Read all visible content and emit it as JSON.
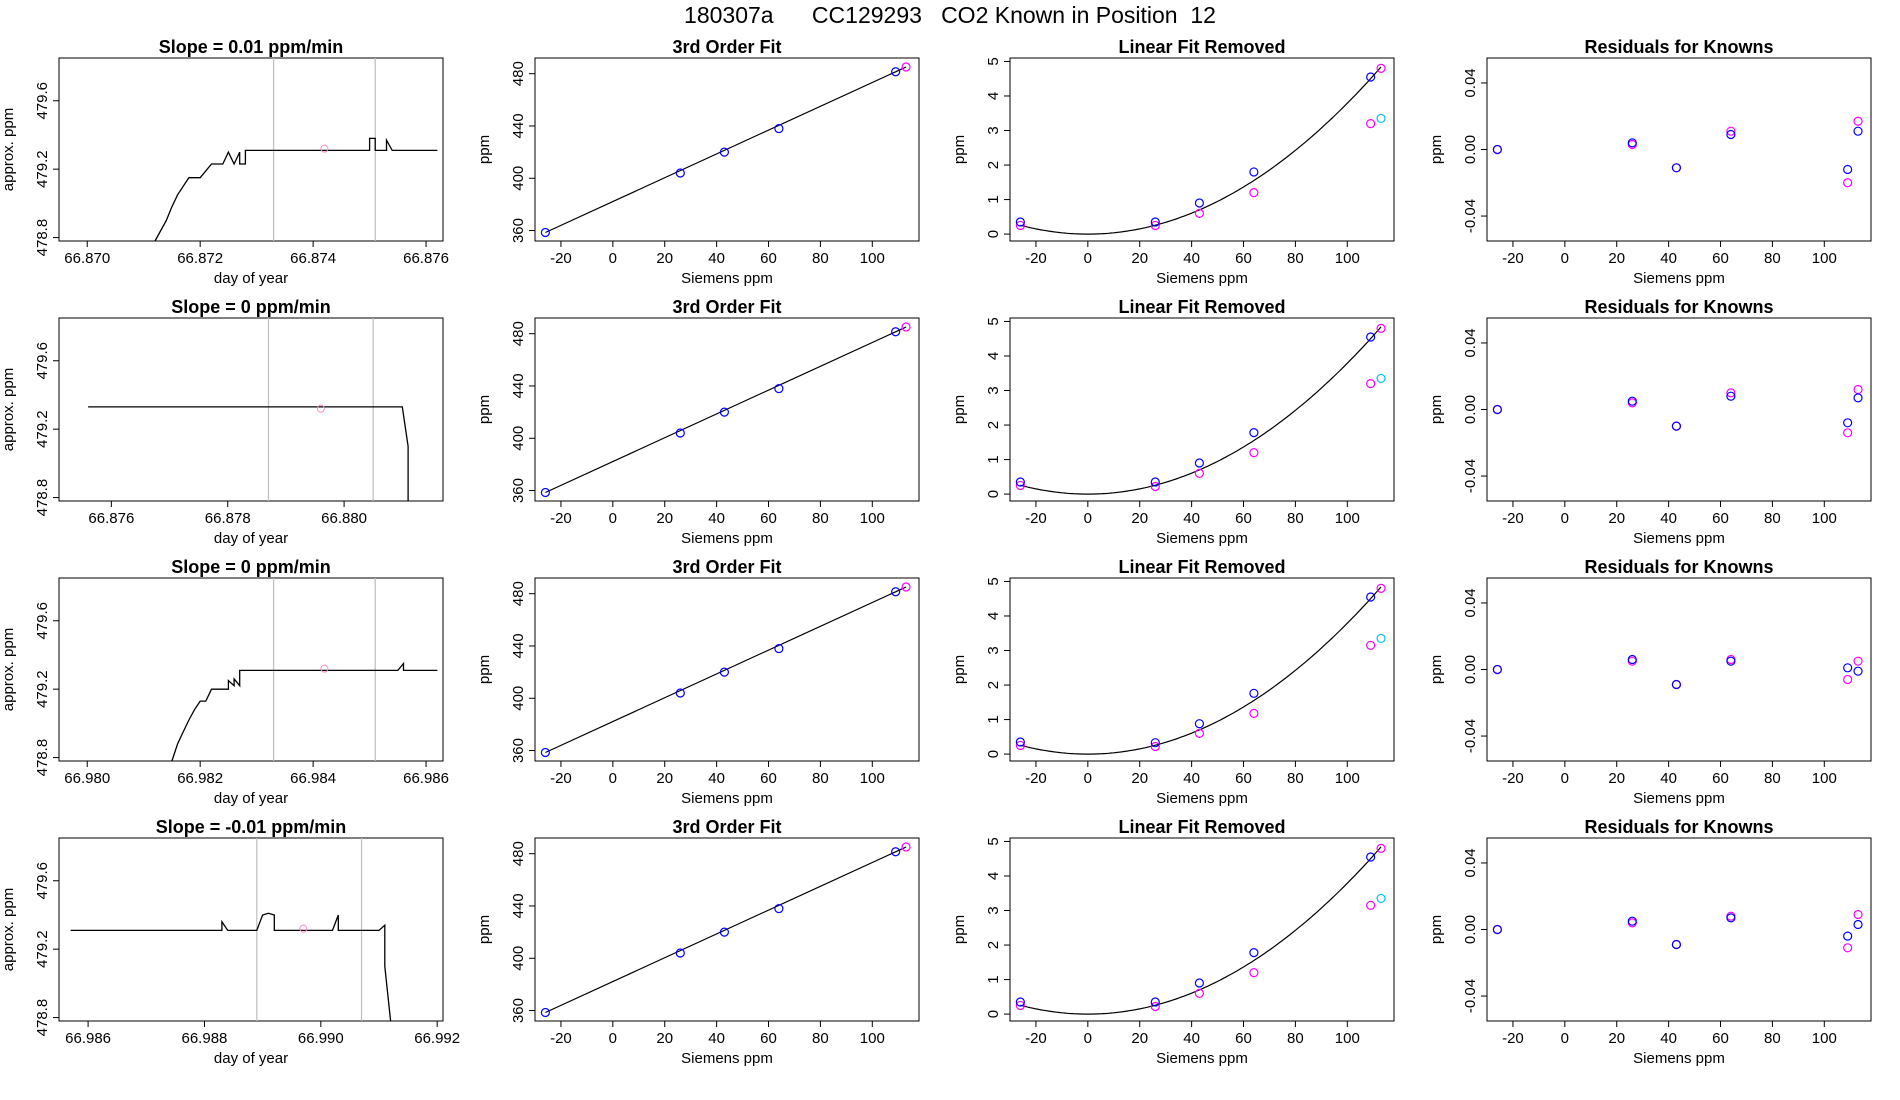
{
  "page_title": "180307a      CC129293   CO2 Known in Position  12",
  "colors": {
    "frame": "#000000",
    "line": "#000000",
    "vline": "#bebebe",
    "blue": "#0000ff",
    "magenta": "#ff00ff",
    "cyan": "#00bfff",
    "pink": "#ff88cc"
  },
  "chart_data": [
    {
      "type": "line",
      "title": "Slope =  0.01  ppm/min",
      "xlabel": "day of year",
      "ylabel": "approx. ppm",
      "xlim": [
        66.8695,
        66.8763
      ],
      "ylim": [
        478.78,
        479.85
      ],
      "xticks": [
        66.87,
        66.872,
        66.874,
        66.876
      ],
      "xtick_labels": [
        "66.870",
        "66.872",
        "66.874",
        "66.876"
      ],
      "yticks": [
        478.8,
        479.2,
        479.6
      ],
      "ytick_labels": [
        "478.8",
        "479.2",
        "479.6"
      ],
      "vlines": [
        66.8733,
        66.8751
      ],
      "marker": {
        "x": 66.8742,
        "y": 479.32
      },
      "x": [
        66.8712,
        66.8714,
        66.8715,
        66.8716,
        66.8717,
        66.8718,
        66.8719,
        66.872,
        66.8722,
        66.8723,
        66.8724,
        66.8724,
        66.8725,
        66.8726,
        66.8726,
        66.8727,
        66.8727,
        66.8728,
        66.8728,
        66.8729,
        66.875,
        66.875,
        66.8751,
        66.8751,
        66.8753,
        66.8753,
        66.8754,
        66.8762
      ],
      "y": [
        478.78,
        478.9,
        478.98,
        479.05,
        479.1,
        479.15,
        479.15,
        479.15,
        479.23,
        479.23,
        479.23,
        479.23,
        479.3,
        479.23,
        479.23,
        479.3,
        479.23,
        479.23,
        479.31,
        479.31,
        479.31,
        479.38,
        479.38,
        479.31,
        479.31,
        479.37,
        479.31,
        479.31
      ]
    },
    {
      "type": "line",
      "title": "3rd Order Fit",
      "xlabel": "Siemens ppm",
      "ylabel": "ppm",
      "xlim": [
        -30,
        118
      ],
      "ylim": [
        352,
        492
      ],
      "xticks": [
        -20,
        0,
        20,
        40,
        60,
        80,
        100
      ],
      "xtick_labels": [
        "-20",
        "0",
        "20",
        "40",
        "60",
        "80",
        "100"
      ],
      "yticks": [
        360,
        400,
        440,
        480
      ],
      "ytick_labels": [
        "360",
        "400",
        "440",
        "480"
      ],
      "fit": {
        "x": [
          -26,
          113
        ],
        "y": [
          358.5,
          485.1
        ]
      },
      "points_blue": {
        "x": [
          -26,
          26,
          43,
          64,
          109
        ],
        "y": [
          358.5,
          404,
          420,
          438,
          481.5
        ]
      },
      "points_magenta": {
        "x": [
          113
        ],
        "y": [
          485.1
        ]
      }
    },
    {
      "type": "scatter",
      "title": "Linear Fit Removed",
      "xlabel": "Siemens ppm",
      "ylabel": "ppm",
      "xlim": [
        -30,
        118
      ],
      "ylim": [
        -0.2,
        5.1
      ],
      "xticks": [
        -20,
        0,
        20,
        40,
        60,
        80,
        100
      ],
      "xtick_labels": [
        "-20",
        "0",
        "20",
        "40",
        "60",
        "80",
        "100"
      ],
      "yticks": [
        0,
        1,
        2,
        3,
        4,
        5
      ],
      "ytick_labels": [
        "0",
        "1",
        "2",
        "3",
        "4",
        "5"
      ],
      "curve_coefficient": 0.000379,
      "points_blue": {
        "x": [
          -26,
          26,
          43,
          64,
          109
        ],
        "y": [
          0.35,
          0.35,
          0.9,
          1.8,
          4.55
        ]
      },
      "points_magenta": {
        "x": [
          -26,
          26,
          43,
          64,
          109,
          113
        ],
        "y": [
          0.25,
          0.25,
          0.6,
          1.2,
          3.2,
          4.8
        ]
      },
      "points_cyan": {
        "x": [
          113
        ],
        "y": [
          3.35
        ]
      }
    },
    {
      "type": "scatter",
      "title": "Residuals for Knowns",
      "xlabel": "Siemens ppm",
      "ylabel": "ppm",
      "xlim": [
        -30,
        118
      ],
      "ylim": [
        -0.055,
        0.055
      ],
      "xticks": [
        -20,
        0,
        20,
        40,
        60,
        80,
        100
      ],
      "xtick_labels": [
        "-20",
        "0",
        "20",
        "40",
        "60",
        "80",
        "100"
      ],
      "yticks": [
        -0.04,
        0.0,
        0.04
      ],
      "ytick_labels": [
        "-0.04",
        "0.00",
        "0.04"
      ],
      "points_blue": {
        "x": [
          -26,
          26,
          43,
          64,
          109,
          113
        ],
        "y": [
          0.0,
          0.004,
          -0.011,
          0.009,
          -0.012,
          0.011
        ]
      },
      "points_magenta": {
        "x": [
          -26,
          26,
          43,
          64,
          109,
          113
        ],
        "y": [
          0.0,
          0.003,
          -0.011,
          0.011,
          -0.02,
          0.017
        ]
      }
    },
    {
      "type": "line",
      "title": "Slope =  0  ppm/min",
      "xlabel": "day of year",
      "ylabel": "approx. ppm",
      "xlim": [
        66.8751,
        66.8817
      ],
      "ylim": [
        478.78,
        479.85
      ],
      "xticks": [
        66.876,
        66.878,
        66.88
      ],
      "xtick_labels": [
        "66.876",
        "66.878",
        "66.880"
      ],
      "yticks": [
        478.8,
        479.2,
        479.6
      ],
      "ytick_labels": [
        "478.8",
        "479.2",
        "479.6"
      ],
      "vlines": [
        66.8787,
        66.8805
      ],
      "marker": {
        "x": 66.8796,
        "y": 479.32
      },
      "x": [
        66.8756,
        66.881,
        66.8811,
        66.8811
      ],
      "y": [
        479.33,
        479.33,
        479.1,
        478.78
      ]
    },
    {
      "type": "line",
      "title": "3rd Order Fit",
      "xlabel": "Siemens ppm",
      "ylabel": "ppm",
      "xlim": [
        -30,
        118
      ],
      "ylim": [
        352,
        492
      ],
      "xticks": [
        -20,
        0,
        20,
        40,
        60,
        80,
        100
      ],
      "xtick_labels": [
        "-20",
        "0",
        "20",
        "40",
        "60",
        "80",
        "100"
      ],
      "yticks": [
        360,
        400,
        440,
        480
      ],
      "ytick_labels": [
        "360",
        "400",
        "440",
        "480"
      ],
      "fit": {
        "x": [
          -26,
          113
        ],
        "y": [
          358.5,
          485.1
        ]
      },
      "points_blue": {
        "x": [
          -26,
          26,
          43,
          64,
          109
        ],
        "y": [
          358.5,
          404,
          420,
          438,
          481.5
        ]
      },
      "points_magenta": {
        "x": [
          113
        ],
        "y": [
          485.1
        ]
      }
    },
    {
      "type": "scatter",
      "title": "Linear Fit Removed",
      "xlabel": "Siemens ppm",
      "ylabel": "ppm",
      "xlim": [
        -30,
        118
      ],
      "ylim": [
        -0.2,
        5.1
      ],
      "xticks": [
        -20,
        0,
        20,
        40,
        60,
        80,
        100
      ],
      "xtick_labels": [
        "-20",
        "0",
        "20",
        "40",
        "60",
        "80",
        "100"
      ],
      "yticks": [
        0,
        1,
        2,
        3,
        4,
        5
      ],
      "ytick_labels": [
        "0",
        "1",
        "2",
        "3",
        "4",
        "5"
      ],
      "curve_coefficient": 0.000379,
      "points_blue": {
        "x": [
          -26,
          26,
          43,
          64,
          109
        ],
        "y": [
          0.35,
          0.35,
          0.9,
          1.78,
          4.55
        ]
      },
      "points_magenta": {
        "x": [
          -26,
          26,
          43,
          64,
          109,
          113
        ],
        "y": [
          0.25,
          0.22,
          0.6,
          1.2,
          3.2,
          4.8
        ]
      },
      "points_cyan": {
        "x": [
          113
        ],
        "y": [
          3.35
        ]
      }
    },
    {
      "type": "scatter",
      "title": "Residuals for Knowns",
      "xlabel": "Siemens ppm",
      "ylabel": "ppm",
      "xlim": [
        -30,
        118
      ],
      "ylim": [
        -0.055,
        0.055
      ],
      "xticks": [
        -20,
        0,
        20,
        40,
        60,
        80,
        100
      ],
      "xtick_labels": [
        "-20",
        "0",
        "20",
        "40",
        "60",
        "80",
        "100"
      ],
      "yticks": [
        -0.04,
        0.0,
        0.04
      ],
      "ytick_labels": [
        "-0.04",
        "0.00",
        "0.04"
      ],
      "points_blue": {
        "x": [
          -26,
          26,
          43,
          64,
          109,
          113
        ],
        "y": [
          0.0,
          0.005,
          -0.01,
          0.008,
          -0.008,
          0.007
        ]
      },
      "points_magenta": {
        "x": [
          -26,
          26,
          43,
          64,
          109,
          113
        ],
        "y": [
          0.0,
          0.004,
          -0.01,
          0.01,
          -0.014,
          0.012
        ]
      }
    },
    {
      "type": "line",
      "title": "Slope =  0  ppm/min",
      "xlabel": "day of year",
      "ylabel": "approx. ppm",
      "xlim": [
        66.9795,
        66.9863
      ],
      "ylim": [
        478.78,
        479.85
      ],
      "xticks": [
        66.98,
        66.982,
        66.984,
        66.986
      ],
      "xtick_labels": [
        "66.980",
        "66.982",
        "66.984",
        "66.986"
      ],
      "yticks": [
        478.8,
        479.2,
        479.6
      ],
      "ytick_labels": [
        "478.8",
        "479.2",
        "479.6"
      ],
      "vlines": [
        66.9833,
        66.9851
      ],
      "marker": {
        "x": 66.9842,
        "y": 479.32
      },
      "x": [
        66.9815,
        66.9816,
        66.9817,
        66.9818,
        66.9819,
        66.982,
        66.9821,
        66.9822,
        66.9824,
        66.9825,
        66.9825,
        66.9826,
        66.9826,
        66.9827,
        66.9827,
        66.9855,
        66.9856,
        66.9856,
        66.9862
      ],
      "y": [
        478.78,
        478.88,
        478.95,
        479.02,
        479.08,
        479.13,
        479.13,
        479.2,
        479.2,
        479.2,
        479.25,
        479.22,
        479.26,
        479.22,
        479.31,
        479.31,
        479.35,
        479.31,
        479.31
      ]
    },
    {
      "type": "line",
      "title": "3rd Order Fit",
      "xlabel": "Siemens ppm",
      "ylabel": "ppm",
      "xlim": [
        -30,
        118
      ],
      "ylim": [
        352,
        492
      ],
      "xticks": [
        -20,
        0,
        20,
        40,
        60,
        80,
        100
      ],
      "xtick_labels": [
        "-20",
        "0",
        "20",
        "40",
        "60",
        "80",
        "100"
      ],
      "yticks": [
        360,
        400,
        440,
        480
      ],
      "ytick_labels": [
        "360",
        "400",
        "440",
        "480"
      ],
      "fit": {
        "x": [
          -26,
          113
        ],
        "y": [
          358.5,
          485.1
        ]
      },
      "points_blue": {
        "x": [
          -26,
          26,
          43,
          64,
          109
        ],
        "y": [
          358.5,
          404,
          420,
          438,
          481.5
        ]
      },
      "points_magenta": {
        "x": [
          113
        ],
        "y": [
          485.1
        ]
      }
    },
    {
      "type": "scatter",
      "title": "Linear Fit Removed",
      "xlabel": "Siemens ppm",
      "ylabel": "ppm",
      "xlim": [
        -30,
        118
      ],
      "ylim": [
        -0.2,
        5.1
      ],
      "xticks": [
        -20,
        0,
        20,
        40,
        60,
        80,
        100
      ],
      "xtick_labels": [
        "-20",
        "0",
        "20",
        "40",
        "60",
        "80",
        "100"
      ],
      "yticks": [
        0,
        1,
        2,
        3,
        4,
        5
      ],
      "ytick_labels": [
        "0",
        "1",
        "2",
        "3",
        "4",
        "5"
      ],
      "curve_coefficient": 0.000379,
      "points_blue": {
        "x": [
          -26,
          26,
          43,
          64,
          109
        ],
        "y": [
          0.35,
          0.33,
          0.88,
          1.76,
          4.55
        ]
      },
      "points_magenta": {
        "x": [
          -26,
          26,
          43,
          64,
          109,
          113
        ],
        "y": [
          0.25,
          0.22,
          0.6,
          1.18,
          3.15,
          4.8
        ]
      },
      "points_cyan": {
        "x": [
          113
        ],
        "y": [
          3.35
        ]
      }
    },
    {
      "type": "scatter",
      "title": "Residuals for Knowns",
      "xlabel": "Siemens ppm",
      "ylabel": "ppm",
      "xlim": [
        -30,
        118
      ],
      "ylim": [
        -0.055,
        0.055
      ],
      "xticks": [
        -20,
        0,
        20,
        40,
        60,
        80,
        100
      ],
      "xtick_labels": [
        "-20",
        "0",
        "20",
        "40",
        "60",
        "80",
        "100"
      ],
      "yticks": [
        -0.04,
        0.0,
        0.04
      ],
      "ytick_labels": [
        "-0.04",
        "0.00",
        "0.04"
      ],
      "points_blue": {
        "x": [
          -26,
          26,
          43,
          64,
          109,
          113
        ],
        "y": [
          0.0,
          0.006,
          -0.009,
          0.005,
          0.001,
          -0.001
        ]
      },
      "points_magenta": {
        "x": [
          -26,
          26,
          43,
          64,
          109,
          113
        ],
        "y": [
          0.0,
          0.005,
          -0.009,
          0.006,
          -0.006,
          0.005
        ]
      }
    },
    {
      "type": "line",
      "title": "Slope =  -0.01  ppm/min",
      "xlabel": "day of year",
      "ylabel": "approx. ppm",
      "xlim": [
        66.9855,
        66.9921
      ],
      "ylim": [
        478.78,
        479.85
      ],
      "xticks": [
        66.986,
        66.988,
        66.99,
        66.992
      ],
      "xtick_labels": [
        "66.986",
        "66.988",
        "66.990",
        "66.992"
      ],
      "yticks": [
        478.8,
        479.2,
        479.6
      ],
      "ytick_labels": [
        "478.8",
        "479.2",
        "479.6"
      ],
      "vlines": [
        66.9889,
        66.9907
      ],
      "marker": {
        "x": 66.9897,
        "y": 479.32
      },
      "x": [
        66.9857,
        66.9883,
        66.9883,
        66.9884,
        66.9889,
        66.989,
        66.9891,
        66.9892,
        66.9892,
        66.9902,
        66.9903,
        66.9903,
        66.991,
        66.9911,
        66.9911,
        66.9912
      ],
      "y": [
        479.31,
        479.31,
        479.36,
        479.31,
        479.31,
        479.4,
        479.41,
        479.4,
        479.31,
        479.31,
        479.4,
        479.31,
        479.31,
        479.34,
        479.1,
        478.78
      ]
    },
    {
      "type": "line",
      "title": "3rd Order Fit",
      "xlabel": "Siemens ppm",
      "ylabel": "ppm",
      "xlim": [
        -30,
        118
      ],
      "ylim": [
        352,
        492
      ],
      "xticks": [
        -20,
        0,
        20,
        40,
        60,
        80,
        100
      ],
      "xtick_labels": [
        "-20",
        "0",
        "20",
        "40",
        "60",
        "80",
        "100"
      ],
      "yticks": [
        360,
        400,
        440,
        480
      ],
      "ytick_labels": [
        "360",
        "400",
        "440",
        "480"
      ],
      "fit": {
        "x": [
          -26,
          113
        ],
        "y": [
          358.5,
          485.1
        ]
      },
      "points_blue": {
        "x": [
          -26,
          26,
          43,
          64,
          109
        ],
        "y": [
          358.5,
          404,
          420,
          438,
          481.5
        ]
      },
      "points_magenta": {
        "x": [
          113
        ],
        "y": [
          485.1
        ]
      }
    },
    {
      "type": "scatter",
      "title": "Linear Fit Removed",
      "xlabel": "Siemens ppm",
      "ylabel": "ppm",
      "xlim": [
        -30,
        118
      ],
      "ylim": [
        -0.2,
        5.1
      ],
      "xticks": [
        -20,
        0,
        20,
        40,
        60,
        80,
        100
      ],
      "xtick_labels": [
        "-20",
        "0",
        "20",
        "40",
        "60",
        "80",
        "100"
      ],
      "yticks": [
        0,
        1,
        2,
        3,
        4,
        5
      ],
      "ytick_labels": [
        "0",
        "1",
        "2",
        "3",
        "4",
        "5"
      ],
      "curve_coefficient": 0.000379,
      "points_blue": {
        "x": [
          -26,
          26,
          43,
          64,
          109
        ],
        "y": [
          0.35,
          0.35,
          0.9,
          1.78,
          4.55
        ]
      },
      "points_magenta": {
        "x": [
          -26,
          26,
          43,
          64,
          109,
          113
        ],
        "y": [
          0.25,
          0.22,
          0.6,
          1.2,
          3.15,
          4.8
        ]
      },
      "points_cyan": {
        "x": [
          113
        ],
        "y": [
          3.35
        ]
      }
    },
    {
      "type": "scatter",
      "title": "Residuals for Knowns",
      "xlabel": "Siemens ppm",
      "ylabel": "ppm",
      "xlim": [
        -30,
        118
      ],
      "ylim": [
        -0.055,
        0.055
      ],
      "xticks": [
        -20,
        0,
        20,
        40,
        60,
        80,
        100
      ],
      "xtick_labels": [
        "-20",
        "0",
        "20",
        "40",
        "60",
        "80",
        "100"
      ],
      "yticks": [
        -0.04,
        0.0,
        0.04
      ],
      "ytick_labels": [
        "-0.04",
        "0.00",
        "0.04"
      ],
      "points_blue": {
        "x": [
          -26,
          26,
          43,
          64,
          109,
          113
        ],
        "y": [
          0.0,
          0.005,
          -0.009,
          0.007,
          -0.004,
          0.003
        ]
      },
      "points_magenta": {
        "x": [
          -26,
          26,
          43,
          64,
          109,
          113
        ],
        "y": [
          0.0,
          0.004,
          -0.009,
          0.008,
          -0.011,
          0.009
        ]
      }
    }
  ]
}
